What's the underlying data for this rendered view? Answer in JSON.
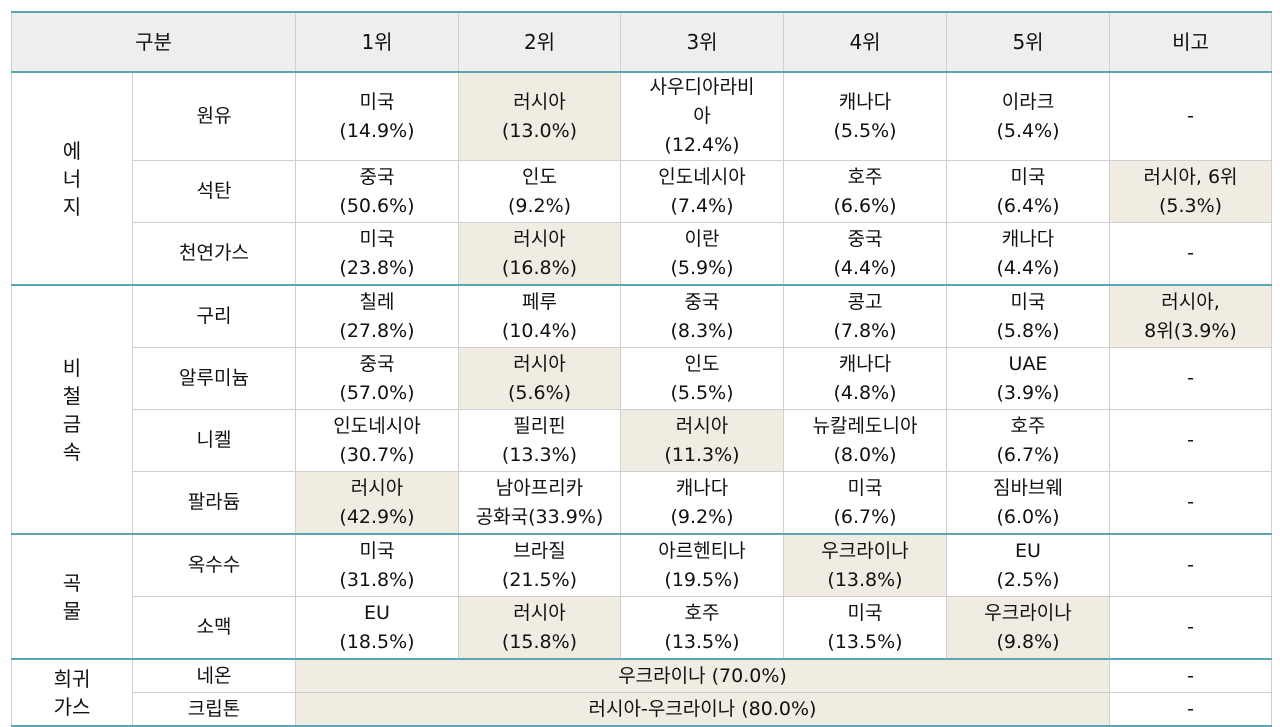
{
  "header": {
    "category": "구분",
    "rank1": "1위",
    "rank2": "2위",
    "rank3": "3위",
    "rank4": "4위",
    "rank5": "5위",
    "note": "비고"
  },
  "energy": {
    "group": "에\n너\n지",
    "crude": {
      "name": "원유",
      "r1": "미국\n(14.9%)",
      "r2": "러시아\n(13.0%)",
      "r3": "사우디아라비\n아\n(12.4%)",
      "r4": "캐나다\n(5.5%)",
      "r5": "이라크\n(5.4%)",
      "note": "-"
    },
    "coal": {
      "name": "석탄",
      "r1": "중국\n(50.6%)",
      "r2": "인도\n(9.2%)",
      "r3": "인도네시아\n(7.4%)",
      "r4": "호주\n(6.6%)",
      "r5": "미국\n(6.4%)",
      "note": "러시아, 6위\n(5.3%)"
    },
    "gas": {
      "name": "천연가스",
      "r1": "미국\n(23.8%)",
      "r2": "러시아\n(16.8%)",
      "r3": "이란\n(5.9%)",
      "r4": "중국\n(4.4%)",
      "r5": "캐나다\n(4.4%)",
      "note": "-"
    }
  },
  "metals": {
    "group": "비\n철\n금\n속",
    "copper": {
      "name": "구리",
      "r1": "칠레\n(27.8%)",
      "r2": "페루\n(10.4%)",
      "r3": "중국\n(8.3%)",
      "r4": "콩고\n(7.8%)",
      "r5": "미국\n(5.8%)",
      "note": "러시아,\n8위(3.9%)"
    },
    "aluminum": {
      "name": "알루미늄",
      "r1": "중국\n(57.0%)",
      "r2": "러시아\n(5.6%)",
      "r3": "인도\n(5.5%)",
      "r4": "캐나다\n(4.8%)",
      "r5": "UAE\n(3.9%)",
      "note": "-"
    },
    "nickel": {
      "name": "니켈",
      "r1": "인도네시아\n(30.7%)",
      "r2": "필리핀\n(13.3%)",
      "r3": "러시아\n(11.3%)",
      "r4": "뉴칼레도니아\n(8.0%)",
      "r5": "호주\n(6.7%)",
      "note": "-"
    },
    "palladium": {
      "name": "팔라듐",
      "r1": "러시아\n(42.9%)",
      "r2": "남아프리카\n공화국(33.9%)",
      "r3": "캐나다\n(9.2%)",
      "r4": "미국\n(6.7%)",
      "r5": "짐바브웨\n(6.0%)",
      "note": "-"
    }
  },
  "grain": {
    "group": "곡\n물",
    "corn": {
      "name": "옥수수",
      "r1": "미국\n(31.8%)",
      "r2": "브라질\n(21.5%)",
      "r3": "아르헨티나\n(19.5%)",
      "r4": "우크라이나\n(13.8%)",
      "r5": "EU\n(2.5%)",
      "note": "-"
    },
    "wheat": {
      "name": "소맥",
      "r1": "EU\n(18.5%)",
      "r2": "러시아\n(15.8%)",
      "r3": "호주\n(13.5%)",
      "r4": "미국\n(13.5%)",
      "r5": "우크라이나\n(9.8%)",
      "note": "-"
    }
  },
  "raregas": {
    "group": "희귀\n가스",
    "neon": {
      "name": "네온",
      "value": "우크라이나 (70.0%)",
      "note": "-"
    },
    "krypton": {
      "name": "크립톤",
      "value": "러시아-우크라이나 (80.0%)",
      "note": "-"
    }
  },
  "colors": {
    "accent_line": "#5aa6b4",
    "highlight": "#f0ece1",
    "header_bg": "#eeeeee"
  }
}
